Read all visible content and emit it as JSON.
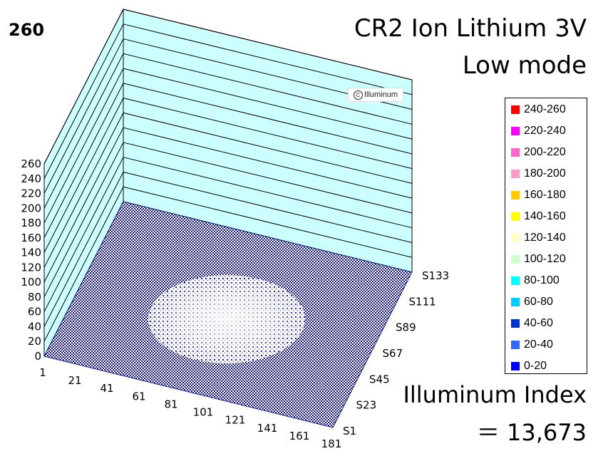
{
  "header": {
    "max_label": "260",
    "title_line1": "CR2 Ion Lithium 3V",
    "title_line2": "Low mode"
  },
  "footer": {
    "index_label": "Illuminum Index",
    "index_value": "＝ 13,673"
  },
  "watermark": {
    "symbol": "C",
    "text": "Illuminum"
  },
  "colors": {
    "back_wall": "#ccffff",
    "floor_mesh": "#1a1a8c",
    "hotspot": "#ffffff"
  },
  "chart_data": {
    "type": "3d-surface",
    "title": "CR2 Ion Lithium 3V Low mode",
    "z_ticks": [
      "0",
      "20",
      "40",
      "60",
      "80",
      "100",
      "120",
      "140",
      "160",
      "180",
      "200",
      "220",
      "240",
      "260"
    ],
    "zlim": [
      0,
      260
    ],
    "x_ticks": [
      "1",
      "21",
      "41",
      "61",
      "81",
      "101",
      "121",
      "141",
      "161",
      "181"
    ],
    "y_ticks": [
      "S1",
      "S23",
      "S45",
      "S67",
      "S89",
      "S111",
      "S133"
    ],
    "surface_level": "near 0 (0-20) across the whole beam field",
    "legend": [
      {
        "label": "240-260",
        "color": "#ff0000"
      },
      {
        "label": "220-240",
        "color": "#ff00ff"
      },
      {
        "label": "200-220",
        "color": "#ff66cc"
      },
      {
        "label": "180-200",
        "color": "#ff99cc"
      },
      {
        "label": "160-180",
        "color": "#ffcc00"
      },
      {
        "label": "140-160",
        "color": "#ffff00"
      },
      {
        "label": "120-140",
        "color": "#ffffcc"
      },
      {
        "label": "100-120",
        "color": "#ccffcc"
      },
      {
        "label": "80-100",
        "color": "#00ffff"
      },
      {
        "label": "60-80",
        "color": "#00ccff"
      },
      {
        "label": "40-60",
        "color": "#0033cc"
      },
      {
        "label": "20-40",
        "color": "#3366ff"
      },
      {
        "label": "0-20",
        "color": "#0000ff"
      }
    ]
  }
}
